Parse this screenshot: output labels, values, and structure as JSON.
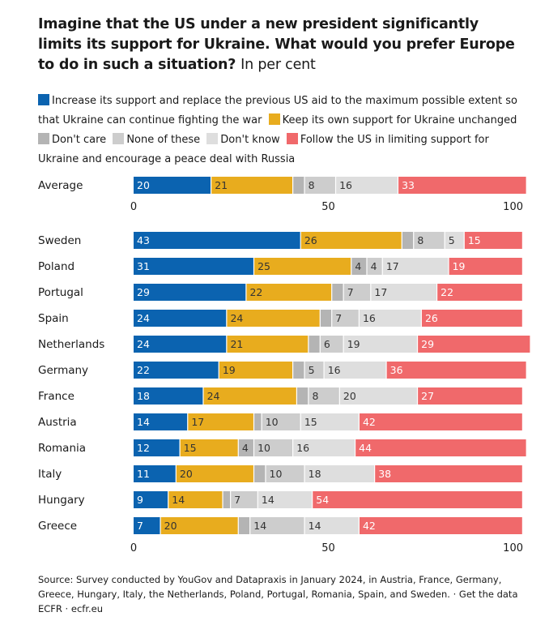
{
  "title_bold": "Imagine that the US under a new president significantly limits its support for Ukraine. What would you prefer Europe to do in such a situation?",
  "title_light": "In per cent",
  "footer": {
    "source": "Source: Survey conducted by YouGov and Datapraxis in January 2024, in Austria, France, Germany, Greece, Hungary, Italy, the Netherlands, Poland, Portugal, Romania, Spain, and Sweden.",
    "separator": " · ",
    "get_data": "Get the data",
    "publisher": "ECFR",
    "site": "ecfr.eu"
  },
  "colors": {
    "increase": "#0b63b0",
    "keep": "#e8ac1e",
    "dont_care": "#b4b4b4",
    "none": "#cdcdcd",
    "dont_know": "#dedede",
    "follow": "#f0696b"
  },
  "chart_data": {
    "type": "bar",
    "orientation": "horizontal",
    "stacked": true,
    "xlim": [
      0,
      100
    ],
    "xticks": [
      0,
      50,
      100
    ],
    "series": [
      {
        "name": "Increase its support and replace the previous US aid to the maximum possible extent so that Ukraine can continue fighting the war",
        "key": "increase"
      },
      {
        "name": "Keep its own support for Ukraine unchanged",
        "key": "keep"
      },
      {
        "name": "Don't care",
        "key": "dont_care"
      },
      {
        "name": "None of these",
        "key": "none"
      },
      {
        "name": "Don't know",
        "key": "dont_know"
      },
      {
        "name": "Follow the US in limiting support for Ukraine and encourage a peace deal with Russia",
        "key": "follow"
      }
    ],
    "average": {
      "label": "Average",
      "values": [
        20,
        21,
        3,
        8,
        16,
        33
      ]
    },
    "rows": [
      {
        "label": "Sweden",
        "values": [
          43,
          26,
          3,
          8,
          5,
          15
        ]
      },
      {
        "label": "Poland",
        "values": [
          31,
          25,
          4,
          4,
          17,
          19
        ]
      },
      {
        "label": "Portugal",
        "values": [
          29,
          22,
          3,
          7,
          17,
          22
        ]
      },
      {
        "label": "Spain",
        "values": [
          24,
          24,
          3,
          7,
          16,
          26
        ]
      },
      {
        "label": "Netherlands",
        "values": [
          24,
          21,
          3,
          6,
          19,
          29
        ]
      },
      {
        "label": "Germany",
        "values": [
          22,
          19,
          3,
          5,
          16,
          36
        ]
      },
      {
        "label": "France",
        "values": [
          18,
          24,
          3,
          8,
          20,
          27
        ]
      },
      {
        "label": "Austria",
        "values": [
          14,
          17,
          2,
          10,
          15,
          42
        ]
      },
      {
        "label": "Romania",
        "values": [
          12,
          15,
          4,
          10,
          16,
          44
        ]
      },
      {
        "label": "Italy",
        "values": [
          11,
          20,
          3,
          10,
          18,
          38
        ]
      },
      {
        "label": "Hungary",
        "values": [
          9,
          14,
          2,
          7,
          14,
          54
        ]
      },
      {
        "label": "Greece",
        "values": [
          7,
          20,
          3,
          14,
          14,
          42
        ]
      }
    ]
  }
}
